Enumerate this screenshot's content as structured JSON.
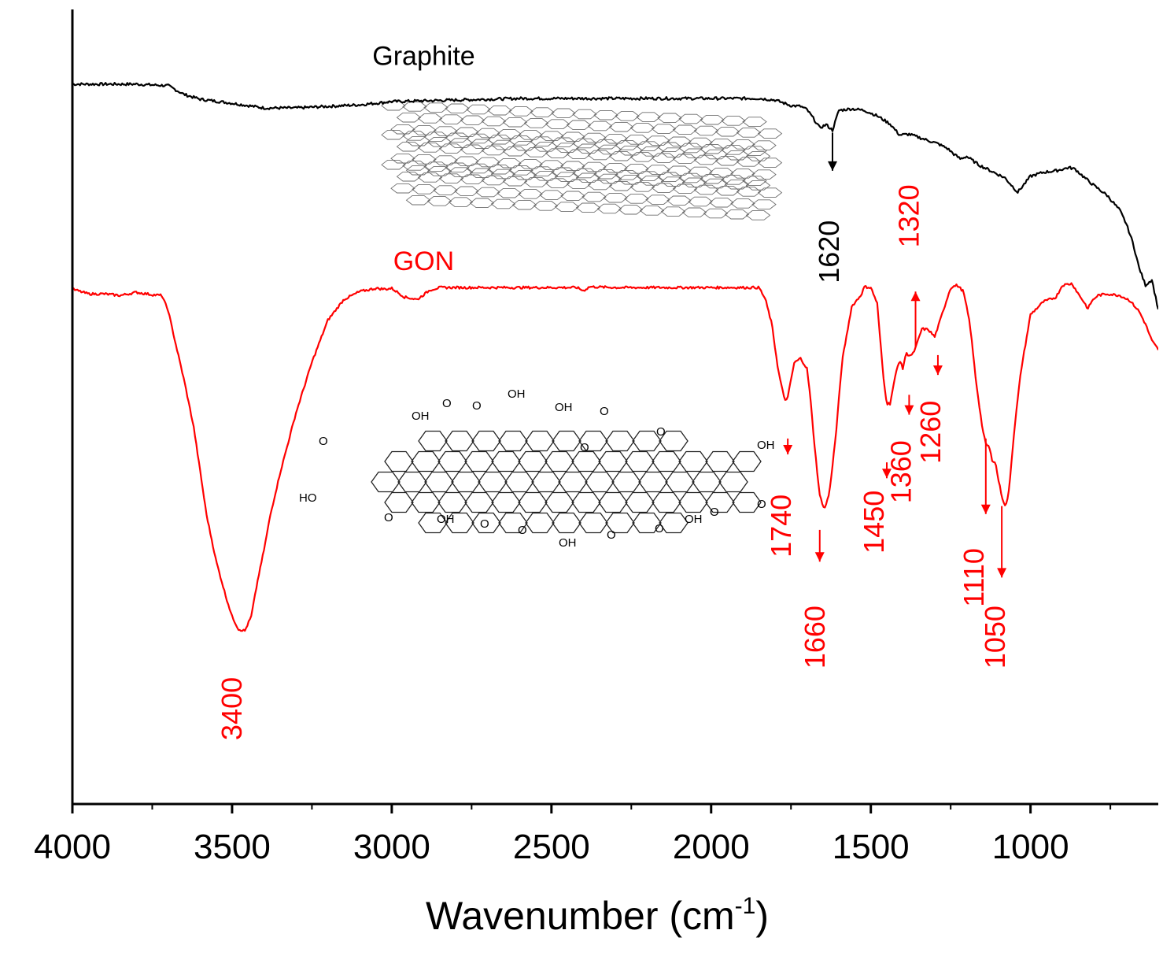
{
  "chart_data": {
    "type": "line",
    "title": "",
    "xlabel": "Wavenumber (cm",
    "xlabel_sup": "-1",
    "xlabel_close": ")",
    "ylabel": "",
    "xlim": [
      4000,
      600
    ],
    "x_reversed": true,
    "y_units": "relative transmittance (0 = bottom axis, 1 = top of plot)",
    "ylim": [
      0,
      1
    ],
    "x_ticks": [
      4000,
      3500,
      3000,
      2500,
      2000,
      1500,
      1000
    ],
    "x_tick_labels": [
      "4000",
      "3500",
      "3000",
      "2500",
      "2000",
      "1500",
      "1000"
    ],
    "series": [
      {
        "name": "Graphite",
        "color": "#000000",
        "x": [
          4000,
          3800,
          3700,
          3650,
          3600,
          3500,
          3400,
          3300,
          3200,
          3100,
          3000,
          2800,
          2600,
          2400,
          2200,
          2000,
          1850,
          1800,
          1750,
          1720,
          1700,
          1680,
          1660,
          1640,
          1620,
          1600,
          1560,
          1520,
          1480,
          1440,
          1410,
          1380,
          1350,
          1320,
          1290,
          1260,
          1240,
          1220,
          1200,
          1160,
          1120,
          1080,
          1060,
          1040,
          1000,
          960,
          920,
          880,
          860,
          830,
          800,
          760,
          720,
          700,
          680,
          660,
          640,
          620,
          600
        ],
        "y": [
          0.906,
          0.906,
          0.904,
          0.893,
          0.887,
          0.882,
          0.876,
          0.876,
          0.878,
          0.88,
          0.884,
          0.886,
          0.888,
          0.888,
          0.888,
          0.888,
          0.888,
          0.886,
          0.879,
          0.878,
          0.874,
          0.863,
          0.851,
          0.855,
          0.848,
          0.873,
          0.875,
          0.873,
          0.866,
          0.856,
          0.842,
          0.843,
          0.839,
          0.835,
          0.831,
          0.825,
          0.818,
          0.812,
          0.815,
          0.804,
          0.796,
          0.788,
          0.779,
          0.77,
          0.79,
          0.795,
          0.797,
          0.801,
          0.799,
          0.788,
          0.778,
          0.766,
          0.747,
          0.73,
          0.707,
          0.675,
          0.653,
          0.66,
          0.622
        ]
      },
      {
        "name": "GON",
        "color": "#ff0000",
        "x": [
          4000,
          3950,
          3900,
          3850,
          3800,
          3750,
          3720,
          3700,
          3680,
          3650,
          3620,
          3600,
          3580,
          3550,
          3520,
          3500,
          3480,
          3460,
          3440,
          3420,
          3400,
          3380,
          3350,
          3300,
          3250,
          3200,
          3150,
          3100,
          3050,
          3020,
          3000,
          2960,
          2920,
          2880,
          2850,
          2800,
          2600,
          2420,
          2400,
          2380,
          2300,
          2000,
          1850,
          1830,
          1810,
          1790,
          1770,
          1760,
          1740,
          1720,
          1700,
          1690,
          1675,
          1660,
          1645,
          1630,
          1610,
          1590,
          1560,
          1530,
          1520,
          1500,
          1480,
          1470,
          1460,
          1450,
          1440,
          1420,
          1410,
          1400,
          1390,
          1380,
          1370,
          1360,
          1340,
          1320,
          1300,
          1290,
          1270,
          1250,
          1230,
          1210,
          1190,
          1170,
          1150,
          1140,
          1130,
          1120,
          1110,
          1100,
          1090,
          1080,
          1070,
          1060,
          1050,
          1030,
          1000,
          960,
          920,
          900,
          870,
          850,
          830,
          820,
          810,
          790,
          760,
          720,
          690,
          660,
          640,
          620,
          600
        ],
        "y": [
          0.648,
          0.642,
          0.642,
          0.64,
          0.644,
          0.641,
          0.64,
          0.621,
          0.585,
          0.533,
          0.474,
          0.419,
          0.364,
          0.306,
          0.262,
          0.236,
          0.22,
          0.218,
          0.236,
          0.281,
          0.32,
          0.364,
          0.416,
          0.492,
          0.556,
          0.609,
          0.635,
          0.645,
          0.649,
          0.648,
          0.649,
          0.638,
          0.635,
          0.647,
          0.65,
          0.65,
          0.65,
          0.65,
          0.646,
          0.651,
          0.65,
          0.65,
          0.65,
          0.635,
          0.604,
          0.546,
          0.508,
          0.512,
          0.555,
          0.561,
          0.548,
          0.514,
          0.446,
          0.388,
          0.371,
          0.391,
          0.462,
          0.557,
          0.626,
          0.641,
          0.651,
          0.65,
          0.63,
          0.581,
          0.535,
          0.504,
          0.504,
          0.545,
          0.559,
          0.548,
          0.567,
          0.565,
          0.565,
          0.574,
          0.598,
          0.597,
          0.588,
          0.6,
          0.625,
          0.65,
          0.653,
          0.645,
          0.605,
          0.53,
          0.471,
          0.453,
          0.45,
          0.433,
          0.43,
          0.407,
          0.388,
          0.375,
          0.385,
          0.429,
          0.474,
          0.545,
          0.616,
          0.632,
          0.638,
          0.653,
          0.655,
          0.642,
          0.63,
          0.623,
          0.632,
          0.64,
          0.642,
          0.64,
          0.634,
          0.62,
          0.604,
          0.583,
          0.572
        ]
      }
    ],
    "series_labels": [
      {
        "text": "Graphite",
        "series": "Graphite",
        "x": 2900,
        "y": 0.93
      },
      {
        "text": "GON",
        "series": "GON",
        "x": 2900,
        "y": 0.672
      }
    ],
    "annotations": [
      {
        "text": "1620",
        "color": "#000000",
        "peak_x": 1620,
        "arrow_dir": "down",
        "arrow_from_y": 0.845,
        "arrow_to_y": 0.797,
        "label_x": 1600,
        "label_y": 0.695
      },
      {
        "text": "3400",
        "color": "#ff0000",
        "peak_x": 3470,
        "arrow_dir": "none",
        "label_x": 3470,
        "label_y": 0.12
      },
      {
        "text": "1740",
        "color": "#ff0000",
        "peak_x": 1760,
        "arrow_dir": "down",
        "arrow_from_y": 0.46,
        "arrow_to_y": 0.44,
        "label_x": 1750,
        "label_y": 0.35
      },
      {
        "text": "1660",
        "color": "#ff0000",
        "peak_x": 1660,
        "arrow_dir": "down",
        "arrow_from_y": 0.345,
        "arrow_to_y": 0.305,
        "label_x": 1645,
        "label_y": 0.21
      },
      {
        "text": "1450",
        "color": "#ff0000",
        "peak_x": 1450,
        "arrow_dir": "down",
        "arrow_from_y": 0.43,
        "arrow_to_y": 0.41,
        "label_x": 1460,
        "label_y": 0.355
      },
      {
        "text": "1360",
        "color": "#ff0000",
        "peak_x": 1380,
        "arrow_dir": "down",
        "arrow_from_y": 0.515,
        "arrow_to_y": 0.49,
        "label_x": 1375,
        "label_y": 0.418
      },
      {
        "text": "1320",
        "color": "#ff0000",
        "peak_x": 1360,
        "arrow_dir": "up",
        "arrow_from_y": 0.575,
        "arrow_to_y": 0.645,
        "label_x": 1350,
        "label_y": 0.74
      },
      {
        "text": "1260",
        "color": "#ff0000",
        "peak_x": 1290,
        "arrow_dir": "down",
        "arrow_from_y": 0.565,
        "arrow_to_y": 0.54,
        "label_x": 1282,
        "label_y": 0.468
      },
      {
        "text": "1110",
        "color": "#ff0000",
        "peak_x": 1140,
        "arrow_dir": "down",
        "arrow_from_y": 0.46,
        "arrow_to_y": 0.365,
        "label_x": 1147,
        "label_y": 0.285
      },
      {
        "text": "1050",
        "color": "#ff0000",
        "peak_x": 1090,
        "arrow_dir": "down",
        "arrow_from_y": 0.375,
        "arrow_to_y": 0.285,
        "label_x": 1080,
        "label_y": 0.21
      }
    ],
    "structure_labels": {
      "gon_oh": "OH",
      "gon_o": "O",
      "gon_ho": "HO"
    }
  }
}
